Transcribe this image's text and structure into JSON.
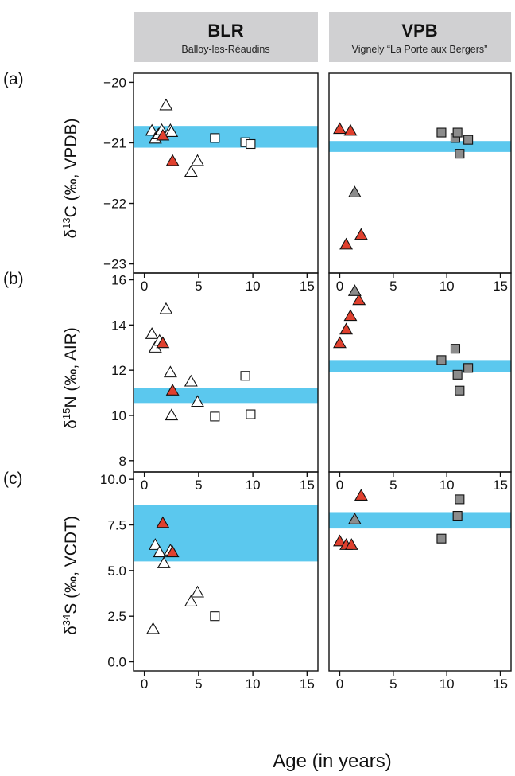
{
  "figure": {
    "x_axis_label": "Age (in years)"
  },
  "headers": [
    {
      "site": "BLR",
      "name": "Balloy-les-Réaudins"
    },
    {
      "site": "VPB",
      "name": "Vignely “La Porte aux Bergers”"
    }
  ],
  "rows": [
    {
      "panel": "(a)",
      "ylabel_pre": "δ",
      "ylabel_sup": "13",
      "ylabel_main": "C (‰, VPDB)"
    },
    {
      "panel": "(b)",
      "ylabel_pre": "δ",
      "ylabel_sup": "15",
      "ylabel_main": "N (‰, AIR)"
    },
    {
      "panel": "(c)",
      "ylabel_pre": "δ",
      "ylabel_sup": "34",
      "ylabel_main": "S (‰, VCDT)"
    }
  ],
  "colors": {
    "band": "#5bc8ee",
    "red_triangle": "#e0402e",
    "grey_triangle": "#8c8c8c",
    "grey_square": "#8c8c8c",
    "white_marker": "#ffffff",
    "header_bg": "#d0d0d2"
  },
  "chart_data": [
    {
      "type": "scatter",
      "site": "BLR",
      "panel": "(a)",
      "isotope": "d13C",
      "xlim": [
        -1,
        16
      ],
      "ylim": [
        -23.15,
        -19.85
      ],
      "xticks": [
        0,
        5,
        10,
        15
      ],
      "xtick_labels": [
        "0",
        "5",
        "10",
        "15"
      ],
      "yticks": [
        -23,
        -22,
        -21,
        -20
      ],
      "ytick_labels": [
        "−23",
        "−22",
        "−21",
        "−20"
      ],
      "band": [
        -21.08,
        -20.72
      ],
      "series": [
        {
          "marker": "triangle",
          "fill": "white",
          "points": [
            [
              0.7,
              -20.8
            ],
            [
              1.0,
              -20.93
            ],
            [
              1.3,
              -20.86
            ],
            [
              1.6,
              -20.79
            ],
            [
              2.0,
              -20.38
            ],
            [
              2.4,
              -20.79
            ],
            [
              2.5,
              -20.82
            ],
            [
              4.3,
              -21.48
            ],
            [
              4.9,
              -21.3
            ]
          ]
        },
        {
          "marker": "triangle",
          "fill": "red",
          "points": [
            [
              1.7,
              -20.88
            ],
            [
              2.6,
              -21.3
            ]
          ]
        },
        {
          "marker": "square",
          "fill": "white",
          "points": [
            [
              6.5,
              -20.92
            ],
            [
              9.3,
              -20.99
            ],
            [
              9.8,
              -21.02
            ]
          ]
        }
      ]
    },
    {
      "type": "scatter",
      "site": "VPB",
      "panel": "(a)",
      "isotope": "d13C",
      "xlim": [
        -1,
        16
      ],
      "ylim": [
        -23.15,
        -19.85
      ],
      "xticks": [
        0,
        5,
        10,
        15
      ],
      "xtick_labels": [
        "0",
        "5",
        "10",
        "15"
      ],
      "band": [
        -21.15,
        -20.97
      ],
      "series": [
        {
          "marker": "triangle",
          "fill": "red",
          "points": [
            [
              0.0,
              -20.77
            ],
            [
              1.0,
              -20.8
            ],
            [
              0.6,
              -22.68
            ],
            [
              2.0,
              -22.52
            ]
          ]
        },
        {
          "marker": "triangle",
          "fill": "grey",
          "points": [
            [
              1.4,
              -21.82
            ]
          ]
        },
        {
          "marker": "square",
          "fill": "grey",
          "points": [
            [
              9.5,
              -20.83
            ],
            [
              10.8,
              -20.92
            ],
            [
              11.0,
              -20.83
            ],
            [
              11.2,
              -21.18
            ],
            [
              12.0,
              -20.95
            ]
          ]
        }
      ]
    },
    {
      "type": "scatter",
      "site": "BLR",
      "panel": "(b)",
      "isotope": "d15N",
      "xlim": [
        -1,
        16
      ],
      "ylim": [
        7.5,
        16.3
      ],
      "xticks": [
        0,
        5,
        10,
        15
      ],
      "xtick_labels": [
        "0",
        "5",
        "10",
        "15"
      ],
      "yticks": [
        8,
        10,
        12,
        14,
        16
      ],
      "ytick_labels": [
        "8",
        "10",
        "12",
        "14",
        "16"
      ],
      "band": [
        10.55,
        11.2
      ],
      "series": [
        {
          "marker": "triangle",
          "fill": "white",
          "points": [
            [
              0.7,
              13.6
            ],
            [
              1.0,
              13.0
            ],
            [
              1.4,
              13.3
            ],
            [
              2.0,
              14.7
            ],
            [
              2.4,
              11.9
            ],
            [
              2.5,
              10.0
            ],
            [
              4.3,
              11.5
            ],
            [
              4.9,
              10.6
            ]
          ]
        },
        {
          "marker": "triangle",
          "fill": "red",
          "points": [
            [
              1.7,
              13.2
            ],
            [
              2.6,
              11.1
            ]
          ]
        },
        {
          "marker": "square",
          "fill": "white",
          "points": [
            [
              6.5,
              9.95
            ],
            [
              9.3,
              11.75
            ],
            [
              9.8,
              10.05
            ]
          ]
        }
      ]
    },
    {
      "type": "scatter",
      "site": "VPB",
      "panel": "(b)",
      "isotope": "d15N",
      "xlim": [
        -1,
        16
      ],
      "ylim": [
        7.5,
        16.3
      ],
      "xticks": [
        0,
        5,
        10,
        15
      ],
      "xtick_labels": [
        "0",
        "5",
        "10",
        "15"
      ],
      "band": [
        11.9,
        12.45
      ],
      "series": [
        {
          "marker": "triangle",
          "fill": "red",
          "points": [
            [
              0.0,
              13.2
            ],
            [
              0.6,
              13.8
            ],
            [
              1.0,
              14.4
            ],
            [
              1.8,
              15.1
            ]
          ]
        },
        {
          "marker": "triangle",
          "fill": "grey",
          "points": [
            [
              1.4,
              15.5
            ]
          ]
        },
        {
          "marker": "square",
          "fill": "grey",
          "points": [
            [
              9.5,
              12.45
            ],
            [
              10.8,
              12.95
            ],
            [
              11.0,
              11.8
            ],
            [
              11.2,
              11.1
            ],
            [
              12.0,
              12.1
            ]
          ]
        }
      ]
    },
    {
      "type": "scatter",
      "site": "BLR",
      "panel": "(c)",
      "isotope": "d34S",
      "xlim": [
        -1,
        16
      ],
      "ylim": [
        -0.5,
        10.4
      ],
      "xticks": [
        0,
        5,
        10,
        15
      ],
      "xtick_labels": [
        "0",
        "5",
        "10",
        "15"
      ],
      "yticks": [
        0.0,
        2.5,
        5.0,
        7.5,
        10.0
      ],
      "ytick_labels": [
        "0.0",
        "2.5",
        "5.0",
        "7.5",
        "10.0"
      ],
      "band": [
        5.5,
        8.6
      ],
      "series": [
        {
          "marker": "triangle",
          "fill": "white",
          "points": [
            [
              0.8,
              1.8
            ],
            [
              1.0,
              6.4
            ],
            [
              1.4,
              6.0
            ],
            [
              1.8,
              5.4
            ],
            [
              2.4,
              6.1
            ],
            [
              4.3,
              3.3
            ],
            [
              4.9,
              3.8
            ]
          ]
        },
        {
          "marker": "triangle",
          "fill": "red",
          "points": [
            [
              1.7,
              7.6
            ],
            [
              2.6,
              6.0
            ]
          ]
        },
        {
          "marker": "square",
          "fill": "white",
          "points": [
            [
              6.5,
              2.5
            ]
          ]
        }
      ]
    },
    {
      "type": "scatter",
      "site": "VPB",
      "panel": "(c)",
      "isotope": "d34S",
      "xlim": [
        -1,
        16
      ],
      "ylim": [
        -0.5,
        10.4
      ],
      "xticks": [
        0,
        5,
        10,
        15
      ],
      "xtick_labels": [
        "0",
        "5",
        "10",
        "15"
      ],
      "band": [
        7.3,
        8.2
      ],
      "series": [
        {
          "marker": "triangle",
          "fill": "red",
          "points": [
            [
              0.0,
              6.6
            ],
            [
              0.6,
              6.4
            ],
            [
              1.1,
              6.4
            ],
            [
              2.0,
              9.1
            ]
          ]
        },
        {
          "marker": "triangle",
          "fill": "grey",
          "points": [
            [
              1.4,
              7.8
            ]
          ]
        },
        {
          "marker": "square",
          "fill": "grey",
          "points": [
            [
              9.5,
              6.75
            ],
            [
              11.0,
              8.0
            ],
            [
              11.2,
              8.9
            ]
          ]
        }
      ]
    }
  ]
}
